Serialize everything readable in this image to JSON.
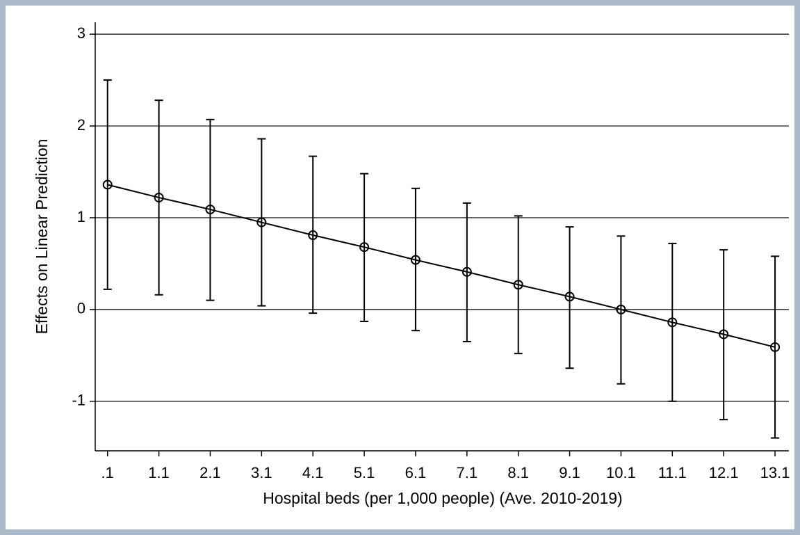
{
  "chart_data": {
    "type": "errorbar-line",
    "x_label": "Hospital beds (per 1,000 people) (Ave. 2010-2019)",
    "y_label": "Effects on Linear Prediction",
    "x": [
      0.1,
      1.1,
      2.1,
      3.1,
      4.1,
      5.1,
      6.1,
      7.1,
      8.1,
      9.1,
      10.1,
      11.1,
      12.1,
      13.1
    ],
    "series": [
      {
        "color": "#000000",
        "values": [
          1.36,
          1.22,
          1.09,
          0.95,
          0.81,
          0.68,
          0.54,
          0.41,
          0.27,
          0.14,
          0.0,
          -0.14,
          -0.27,
          -0.41
        ],
        "lower": [
          0.22,
          0.16,
          0.1,
          0.04,
          -0.04,
          -0.13,
          -0.23,
          -0.35,
          -0.48,
          -0.64,
          -0.81,
          -1.0,
          -1.2,
          -1.4
        ],
        "upper": [
          2.5,
          2.28,
          2.07,
          1.86,
          1.67,
          1.48,
          1.32,
          1.16,
          1.02,
          0.9,
          0.8,
          0.72,
          0.65,
          0.58
        ]
      }
    ],
    "xlim": [
      -0.14,
      13.37
    ],
    "ylim": [
      -1.54,
      3.13
    ],
    "xticks": [
      {
        "value": 0.1,
        "label": ".1"
      },
      1.1,
      2.1,
      3.1,
      4.1,
      5.1,
      6.1,
      7.1,
      8.1,
      9.1,
      10.1,
      11.1,
      12.1,
      13.1
    ],
    "yticks": [
      -1,
      0,
      1,
      2,
      3
    ],
    "grid": true
  }
}
